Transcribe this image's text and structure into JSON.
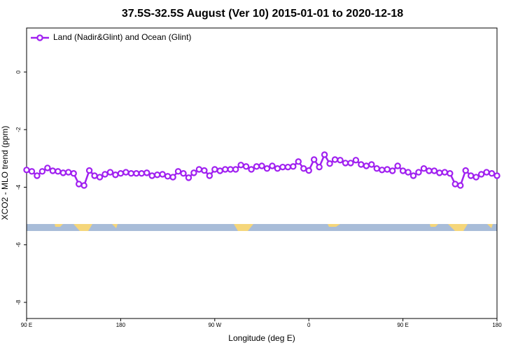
{
  "chart_data": {
    "type": "line",
    "title": "37.5S-32.5S August (Ver 10)   2015-01-01 to 2020-12-18",
    "xlabel": "Longitude (deg E)",
    "ylabel": "XCO2 - MLO trend (ppm)",
    "x": [
      90,
      95,
      100,
      105,
      110,
      115,
      120,
      125,
      130,
      135,
      140,
      145,
      150,
      155,
      160,
      165,
      170,
      175,
      180,
      185,
      190,
      195,
      200,
      205,
      210,
      215,
      220,
      225,
      230,
      235,
      240,
      245,
      250,
      255,
      260,
      265,
      270,
      275,
      280,
      285,
      290,
      295,
      300,
      305,
      310,
      315,
      320,
      325,
      330,
      335,
      340,
      345,
      350,
      355,
      360,
      365,
      370,
      375,
      380,
      385,
      390,
      395,
      400,
      405,
      410,
      415,
      420,
      425,
      430,
      435,
      440,
      445,
      450,
      455,
      460,
      465,
      470,
      475,
      480,
      485,
      490,
      495,
      500,
      505,
      510,
      515,
      520,
      525,
      530,
      535,
      540
    ],
    "series": [
      {
        "name": "Land (Nadir&Glint) and Ocean (Glint)",
        "color": "#a020f0",
        "values": [
          -3.4,
          -3.45,
          -3.6,
          -3.45,
          -3.33,
          -3.43,
          -3.45,
          -3.5,
          -3.48,
          -3.52,
          -3.89,
          -3.94,
          -3.42,
          -3.6,
          -3.65,
          -3.55,
          -3.48,
          -3.57,
          -3.52,
          -3.48,
          -3.52,
          -3.52,
          -3.52,
          -3.5,
          -3.6,
          -3.57,
          -3.55,
          -3.62,
          -3.65,
          -3.45,
          -3.52,
          -3.67,
          -3.5,
          -3.38,
          -3.42,
          -3.6,
          -3.38,
          -3.43,
          -3.38,
          -3.38,
          -3.38,
          -3.23,
          -3.28,
          -3.38,
          -3.28,
          -3.26,
          -3.35,
          -3.26,
          -3.35,
          -3.3,
          -3.3,
          -3.28,
          -3.11,
          -3.35,
          -3.42,
          -3.04,
          -3.3,
          -2.87,
          -3.18,
          -3.04,
          -3.06,
          -3.16,
          -3.16,
          -3.06,
          -3.21,
          -3.26,
          -3.21,
          -3.35,
          -3.4,
          -3.38,
          -3.43,
          -3.26,
          -3.43,
          -3.48,
          -3.6,
          -3.48,
          -3.35,
          -3.43,
          -3.43,
          -3.5,
          -3.48,
          -3.52,
          -3.89,
          -3.94,
          -3.42,
          -3.6,
          -3.65,
          -3.55,
          -3.48,
          -3.52,
          -3.6
        ]
      }
    ],
    "xlim": [
      90,
      540
    ],
    "xticks": [
      {
        "value": 90,
        "label": "90 E"
      },
      {
        "value": 180,
        "label": "180"
      },
      {
        "value": 270,
        "label": "90 W"
      },
      {
        "value": 360,
        "label": "0"
      },
      {
        "value": 450,
        "label": "90 E"
      },
      {
        "value": 540,
        "label": "180"
      }
    ],
    "ylim": [
      -8.56,
      1.53
    ],
    "yticks": [
      0,
      -2,
      -4,
      -6,
      -8
    ],
    "legend": "top-left"
  }
}
